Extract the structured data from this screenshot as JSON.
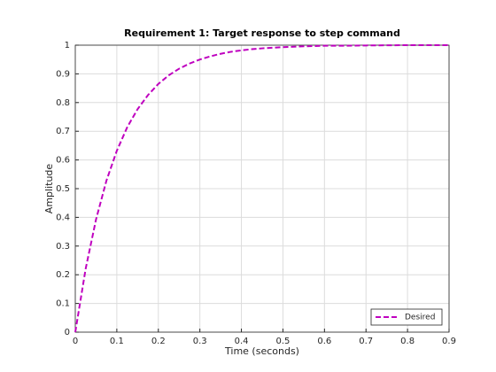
{
  "chart_data": {
    "type": "line",
    "title": "Requirement 1: Target response to step command",
    "x_label": "Time (seconds)",
    "y_label": "Amplitude",
    "x": [
      0,
      0.025,
      0.05,
      0.075,
      0.1,
      0.125,
      0.15,
      0.175,
      0.2,
      0.225,
      0.25,
      0.275,
      0.3,
      0.325,
      0.35,
      0.375,
      0.4,
      0.425,
      0.45,
      0.475,
      0.5,
      0.55,
      0.6,
      0.65,
      0.7,
      0.8,
      0.9
    ],
    "series": [
      {
        "name": "Desired",
        "color": "#bf00bf",
        "dashed": true,
        "values": [
          0,
          0.221,
          0.393,
          0.528,
          0.632,
          0.714,
          0.777,
          0.826,
          0.865,
          0.895,
          0.918,
          0.936,
          0.95,
          0.961,
          0.97,
          0.977,
          0.982,
          0.986,
          0.989,
          0.991,
          0.993,
          0.996,
          0.998,
          0.998,
          0.999,
          1.0,
          1.0
        ]
      }
    ],
    "xlim": [
      0,
      0.9
    ],
    "ylim": [
      0,
      1
    ],
    "xticks": [
      0,
      0.1,
      0.2,
      0.3,
      0.4,
      0.5,
      0.6,
      0.7,
      0.8,
      0.9
    ],
    "yticks": [
      0,
      0.1,
      0.2,
      0.3,
      0.4,
      0.5,
      0.6,
      0.7,
      0.8,
      0.9,
      1
    ],
    "grid": true,
    "legend": "lower right"
  }
}
